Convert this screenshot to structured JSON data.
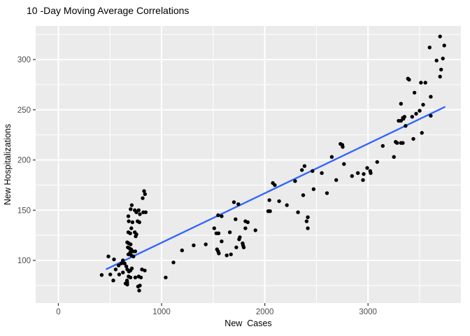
{
  "figure": {
    "title": "10 -Day Moving Average Correlations"
  },
  "chart_data": {
    "type": "scatter",
    "title": "10 -Day Moving Average Correlations",
    "xlabel": "New  Cases",
    "ylabel": "New Hospitalizations",
    "xlim": [
      -220,
      3900
    ],
    "ylim": [
      57.5,
      333.5
    ],
    "x_ticks": [
      0,
      1000,
      2000,
      3000
    ],
    "x_minor_ticks": [
      500,
      1500,
      2500,
      3500
    ],
    "y_ticks": [
      100,
      150,
      200,
      250,
      300
    ],
    "y_minor_ticks": [
      75,
      125,
      175,
      225,
      275,
      325
    ],
    "grid": true,
    "legend": false,
    "panel_bg": "#EBEBEB",
    "grid_major_color": "#FFFFFF",
    "grid_minor_color": "#FFFFFF",
    "point_color": "#000000",
    "trend_color": "#3366FF",
    "tick_label_color": "#4D4D4D",
    "axis_label_color": "#000000",
    "tick_mark_color": "#333333",
    "trendline": {
      "type": "linear",
      "x_start": 467,
      "y_start": 91.4,
      "x_end": 3742,
      "y_end": 252.7
    },
    "points": [
      [
        420,
        85.5
      ],
      [
        485,
        104
      ],
      [
        539,
        101
      ],
      [
        503,
        86
      ],
      [
        532,
        80
      ],
      [
        555,
        91
      ],
      [
        584,
        95
      ],
      [
        589,
        86
      ],
      [
        611,
        97
      ],
      [
        626,
        88
      ],
      [
        651,
        77
      ],
      [
        667,
        78
      ],
      [
        830,
        169
      ],
      [
        839,
        166
      ],
      [
        817,
        162
      ],
      [
        711,
        155
      ],
      [
        700,
        151
      ],
      [
        678,
        144
      ],
      [
        740,
        150
      ],
      [
        778,
        150
      ],
      [
        756,
        148
      ],
      [
        790,
        146
      ],
      [
        823,
        148
      ],
      [
        846,
        148
      ],
      [
        682,
        139
      ],
      [
        718,
        138
      ],
      [
        767,
        139
      ],
      [
        785,
        138
      ],
      [
        707,
        132
      ],
      [
        678,
        128
      ],
      [
        696,
        127
      ],
      [
        740,
        128
      ],
      [
        756,
        126
      ],
      [
        749,
        124
      ],
      [
        667,
        118
      ],
      [
        682,
        117
      ],
      [
        700,
        116
      ],
      [
        673,
        113
      ],
      [
        689,
        112
      ],
      [
        705,
        111
      ],
      [
        723,
        109
      ],
      [
        696,
        108
      ],
      [
        678,
        106
      ],
      [
        707,
        105
      ],
      [
        727,
        104
      ],
      [
        745,
        109
      ],
      [
        625,
        100
      ],
      [
        642,
        97
      ],
      [
        658,
        94
      ],
      [
        668,
        91
      ],
      [
        683,
        89
      ],
      [
        698,
        90
      ],
      [
        712,
        92
      ],
      [
        680,
        84
      ],
      [
        698,
        83
      ],
      [
        745,
        83
      ],
      [
        778,
        84
      ],
      [
        800,
        83
      ],
      [
        665,
        80
      ],
      [
        668,
        76
      ],
      [
        772,
        74
      ],
      [
        790,
        75
      ],
      [
        783,
        70
      ],
      [
        810,
        91
      ],
      [
        837,
        90
      ],
      [
        1040,
        83
      ],
      [
        1115,
        98
      ],
      [
        1198,
        110
      ],
      [
        1311,
        115
      ],
      [
        1428,
        116
      ],
      [
        1510,
        132
      ],
      [
        1530,
        127
      ],
      [
        1552,
        127
      ],
      [
        1537,
        111
      ],
      [
        1548,
        109
      ],
      [
        1555,
        107
      ],
      [
        1582,
        119
      ],
      [
        1631,
        105
      ],
      [
        1672,
        106
      ],
      [
        1661,
        128
      ],
      [
        1724,
        113
      ],
      [
        1751,
        121
      ],
      [
        1785,
        117
      ],
      [
        1789,
        115
      ],
      [
        1796,
        113
      ],
      [
        1717,
        141
      ],
      [
        1548,
        145
      ],
      [
        1582,
        144
      ],
      [
        1701,
        158
      ],
      [
        1744,
        156
      ],
      [
        2044,
        160
      ],
      [
        2139,
        159
      ],
      [
        2214,
        155
      ],
      [
        2033,
        149
      ],
      [
        2051,
        149
      ],
      [
        2322,
        148
      ],
      [
        1812,
        139
      ],
      [
        1835,
        138
      ],
      [
        1812,
        132
      ],
      [
        1909,
        130
      ],
      [
        2372,
        165
      ],
      [
        2405,
        139
      ],
      [
        2417,
        132
      ],
      [
        1758,
        123
      ],
      [
        2360,
        190
      ],
      [
        2385,
        194
      ],
      [
        2462,
        189
      ],
      [
        2078,
        177
      ],
      [
        2097,
        175
      ],
      [
        2293,
        179
      ],
      [
        2733,
        216
      ],
      [
        2751,
        215
      ],
      [
        2755,
        213
      ],
      [
        2649,
        203
      ],
      [
        2767,
        196
      ],
      [
        2552,
        187
      ],
      [
        2692,
        180
      ],
      [
        2845,
        184
      ],
      [
        2902,
        187
      ],
      [
        2958,
        186
      ],
      [
        2951,
        180
      ],
      [
        2992,
        192
      ],
      [
        3021,
        189
      ],
      [
        3026,
        187
      ],
      [
        3089,
        198
      ],
      [
        3143,
        214
      ],
      [
        3268,
        218
      ],
      [
        3281,
        217
      ],
      [
        3337,
        217
      ],
      [
        3251,
        203
      ],
      [
        2473,
        171
      ],
      [
        2602,
        167
      ],
      [
        2417,
        143
      ],
      [
        3698,
        323
      ],
      [
        3597,
        312
      ],
      [
        3739,
        314
      ],
      [
        3664,
        299
      ],
      [
        3725,
        301
      ],
      [
        3708,
        290
      ],
      [
        3698,
        283
      ],
      [
        3387,
        281
      ],
      [
        3398,
        280
      ],
      [
        3513,
        277
      ],
      [
        3556,
        277
      ],
      [
        3450,
        267
      ],
      [
        3608,
        263
      ],
      [
        3319,
        256
      ],
      [
        3534,
        255
      ],
      [
        3500,
        249
      ],
      [
        3466,
        246
      ],
      [
        3428,
        243
      ],
      [
        3338,
        242
      ],
      [
        3319,
        239
      ],
      [
        3364,
        234
      ],
      [
        3608,
        244
      ],
      [
        3522,
        227
      ],
      [
        3439,
        221
      ],
      [
        3319,
        217
      ],
      [
        3297,
        239
      ],
      [
        3353,
        243
      ],
      [
        3342,
        241
      ]
    ]
  }
}
